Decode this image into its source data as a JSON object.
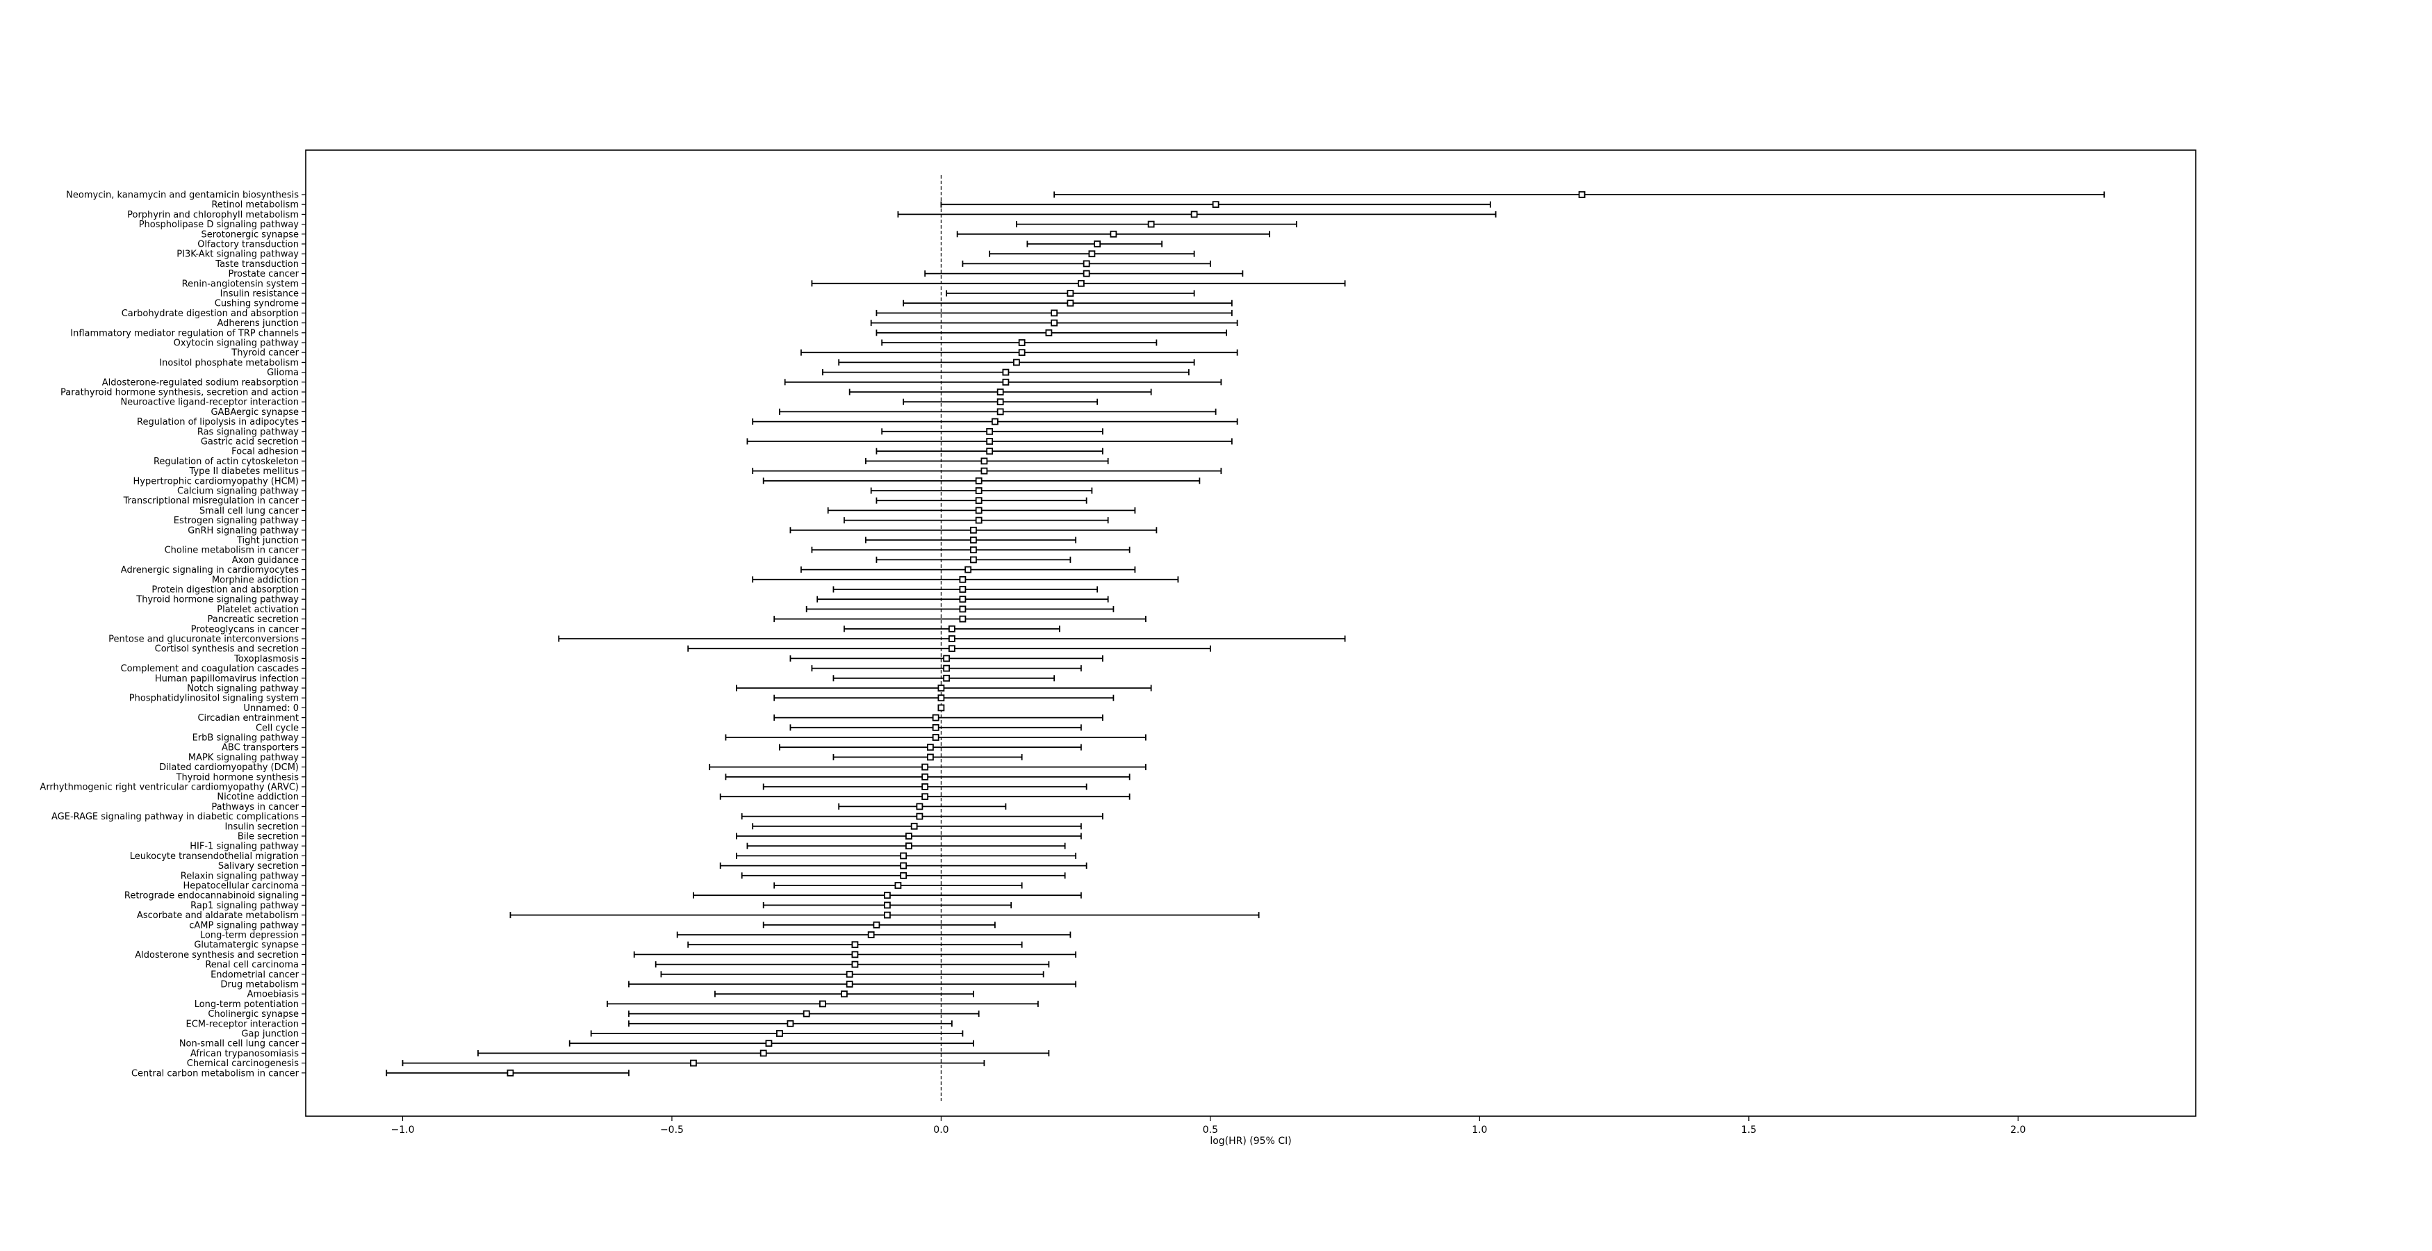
{
  "chart_data": {
    "type": "forest",
    "title": "",
    "xlabel": "log(HR) (95% CI)",
    "ylabel": "",
    "xlim": [
      -1.18,
      2.33
    ],
    "xticks": [
      -1.0,
      -0.5,
      0.0,
      0.5,
      1.0,
      1.5,
      2.0
    ],
    "xtick_labels": [
      "−1.0",
      "−0.5",
      "0.0",
      "0.5",
      "1.0",
      "1.5",
      "2.0"
    ],
    "reference_line": 0,
    "grid": false,
    "legend": "none",
    "colors": {
      "line": "#000000",
      "marker_fill": "#ffffff",
      "marker_edge": "#000000",
      "background": "#ffffff"
    },
    "rows": [
      {
        "label": "Neomycin, kanamycin and gentamicin biosynthesis",
        "est": 1.19,
        "lo": 0.21,
        "hi": 2.16
      },
      {
        "label": "Retinol metabolism",
        "est": 0.51,
        "lo": 0.0,
        "hi": 1.02
      },
      {
        "label": "Porphyrin and chlorophyll metabolism",
        "est": 0.47,
        "lo": -0.08,
        "hi": 1.03
      },
      {
        "label": "Phospholipase D signaling pathway",
        "est": 0.39,
        "lo": 0.14,
        "hi": 0.66
      },
      {
        "label": "Serotonergic synapse",
        "est": 0.32,
        "lo": 0.03,
        "hi": 0.61
      },
      {
        "label": "Olfactory transduction",
        "est": 0.29,
        "lo": 0.16,
        "hi": 0.41
      },
      {
        "label": "PI3K-Akt signaling pathway",
        "est": 0.28,
        "lo": 0.09,
        "hi": 0.47
      },
      {
        "label": "Taste transduction",
        "est": 0.27,
        "lo": 0.04,
        "hi": 0.5
      },
      {
        "label": "Prostate cancer",
        "est": 0.27,
        "lo": -0.03,
        "hi": 0.56
      },
      {
        "label": "Renin-angiotensin system",
        "est": 0.26,
        "lo": -0.24,
        "hi": 0.75
      },
      {
        "label": "Insulin resistance",
        "est": 0.24,
        "lo": 0.01,
        "hi": 0.47
      },
      {
        "label": "Cushing syndrome",
        "est": 0.24,
        "lo": -0.07,
        "hi": 0.54
      },
      {
        "label": "Carbohydrate digestion and absorption",
        "est": 0.21,
        "lo": -0.12,
        "hi": 0.54
      },
      {
        "label": "Adherens junction",
        "est": 0.21,
        "lo": -0.13,
        "hi": 0.55
      },
      {
        "label": "Inflammatory mediator regulation of TRP channels",
        "est": 0.2,
        "lo": -0.12,
        "hi": 0.53
      },
      {
        "label": "Oxytocin signaling pathway",
        "est": 0.15,
        "lo": -0.11,
        "hi": 0.4
      },
      {
        "label": "Thyroid cancer",
        "est": 0.15,
        "lo": -0.26,
        "hi": 0.55
      },
      {
        "label": "Inositol phosphate metabolism",
        "est": 0.14,
        "lo": -0.19,
        "hi": 0.47
      },
      {
        "label": "Glioma",
        "est": 0.12,
        "lo": -0.22,
        "hi": 0.46
      },
      {
        "label": "Aldosterone-regulated sodium reabsorption",
        "est": 0.12,
        "lo": -0.29,
        "hi": 0.52
      },
      {
        "label": "Parathyroid hormone synthesis, secretion and action",
        "est": 0.11,
        "lo": -0.17,
        "hi": 0.39
      },
      {
        "label": "Neuroactive ligand-receptor interaction",
        "est": 0.11,
        "lo": -0.07,
        "hi": 0.29
      },
      {
        "label": "GABAergic synapse",
        "est": 0.11,
        "lo": -0.3,
        "hi": 0.51
      },
      {
        "label": "Regulation of lipolysis in adipocytes",
        "est": 0.1,
        "lo": -0.35,
        "hi": 0.55
      },
      {
        "label": "Ras signaling pathway",
        "est": 0.09,
        "lo": -0.11,
        "hi": 0.3
      },
      {
        "label": "Gastric acid secretion",
        "est": 0.09,
        "lo": -0.36,
        "hi": 0.54
      },
      {
        "label": "Focal adhesion",
        "est": 0.09,
        "lo": -0.12,
        "hi": 0.3
      },
      {
        "label": "Regulation of actin cytoskeleton",
        "est": 0.08,
        "lo": -0.14,
        "hi": 0.31
      },
      {
        "label": "Type II diabetes mellitus",
        "est": 0.08,
        "lo": -0.35,
        "hi": 0.52
      },
      {
        "label": "Hypertrophic cardiomyopathy (HCM)",
        "est": 0.07,
        "lo": -0.33,
        "hi": 0.48
      },
      {
        "label": "Calcium signaling pathway",
        "est": 0.07,
        "lo": -0.13,
        "hi": 0.28
      },
      {
        "label": "Transcriptional misregulation in cancer",
        "est": 0.07,
        "lo": -0.12,
        "hi": 0.27
      },
      {
        "label": "Small cell lung cancer",
        "est": 0.07,
        "lo": -0.21,
        "hi": 0.36
      },
      {
        "label": "Estrogen signaling pathway",
        "est": 0.07,
        "lo": -0.18,
        "hi": 0.31
      },
      {
        "label": "GnRH signaling pathway",
        "est": 0.06,
        "lo": -0.28,
        "hi": 0.4
      },
      {
        "label": "Tight junction",
        "est": 0.06,
        "lo": -0.14,
        "hi": 0.25
      },
      {
        "label": "Choline metabolism in cancer",
        "est": 0.06,
        "lo": -0.24,
        "hi": 0.35
      },
      {
        "label": "Axon guidance",
        "est": 0.06,
        "lo": -0.12,
        "hi": 0.24
      },
      {
        "label": "Adrenergic signaling in cardiomyocytes",
        "est": 0.05,
        "lo": -0.26,
        "hi": 0.36
      },
      {
        "label": "Morphine addiction",
        "est": 0.04,
        "lo": -0.35,
        "hi": 0.44
      },
      {
        "label": "Protein digestion and absorption",
        "est": 0.04,
        "lo": -0.2,
        "hi": 0.29
      },
      {
        "label": "Thyroid hormone signaling pathway",
        "est": 0.04,
        "lo": -0.23,
        "hi": 0.31
      },
      {
        "label": "Platelet activation",
        "est": 0.04,
        "lo": -0.25,
        "hi": 0.32
      },
      {
        "label": "Pancreatic secretion",
        "est": 0.04,
        "lo": -0.31,
        "hi": 0.38
      },
      {
        "label": "Proteoglycans in cancer",
        "est": 0.02,
        "lo": -0.18,
        "hi": 0.22
      },
      {
        "label": "Pentose and glucuronate interconversions",
        "est": 0.02,
        "lo": -0.71,
        "hi": 0.75
      },
      {
        "label": "Cortisol synthesis and secretion",
        "est": 0.02,
        "lo": -0.47,
        "hi": 0.5
      },
      {
        "label": "Toxoplasmosis",
        "est": 0.01,
        "lo": -0.28,
        "hi": 0.3
      },
      {
        "label": "Complement and coagulation cascades",
        "est": 0.01,
        "lo": -0.24,
        "hi": 0.26
      },
      {
        "label": "Human papillomavirus infection",
        "est": 0.01,
        "lo": -0.2,
        "hi": 0.21
      },
      {
        "label": "Notch signaling pathway",
        "est": 0.0,
        "lo": -0.38,
        "hi": 0.39
      },
      {
        "label": "Phosphatidylinositol signaling system",
        "est": 0.0,
        "lo": -0.31,
        "hi": 0.32
      },
      {
        "label": "Unnamed: 0",
        "est": 0.0,
        "lo": 0.0,
        "hi": 0.0
      },
      {
        "label": "Circadian entrainment",
        "est": -0.01,
        "lo": -0.31,
        "hi": 0.3
      },
      {
        "label": "Cell cycle",
        "est": -0.01,
        "lo": -0.28,
        "hi": 0.26
      },
      {
        "label": "ErbB signaling pathway",
        "est": -0.01,
        "lo": -0.4,
        "hi": 0.38
      },
      {
        "label": "ABC transporters",
        "est": -0.02,
        "lo": -0.3,
        "hi": 0.26
      },
      {
        "label": "MAPK signaling pathway",
        "est": -0.02,
        "lo": -0.2,
        "hi": 0.15
      },
      {
        "label": "Dilated cardiomyopathy (DCM)",
        "est": -0.03,
        "lo": -0.43,
        "hi": 0.38
      },
      {
        "label": "Thyroid hormone synthesis",
        "est": -0.03,
        "lo": -0.4,
        "hi": 0.35
      },
      {
        "label": "Arrhythmogenic right ventricular cardiomyopathy (ARVC)",
        "est": -0.03,
        "lo": -0.33,
        "hi": 0.27
      },
      {
        "label": "Nicotine addiction",
        "est": -0.03,
        "lo": -0.41,
        "hi": 0.35
      },
      {
        "label": "Pathways in cancer",
        "est": -0.04,
        "lo": -0.19,
        "hi": 0.12
      },
      {
        "label": "AGE-RAGE signaling pathway in diabetic complications",
        "est": -0.04,
        "lo": -0.37,
        "hi": 0.3
      },
      {
        "label": "Insulin secretion",
        "est": -0.05,
        "lo": -0.35,
        "hi": 0.26
      },
      {
        "label": "Bile secretion",
        "est": -0.06,
        "lo": -0.38,
        "hi": 0.26
      },
      {
        "label": "HIF-1 signaling pathway",
        "est": -0.06,
        "lo": -0.36,
        "hi": 0.23
      },
      {
        "label": "Leukocyte transendothelial migration",
        "est": -0.07,
        "lo": -0.38,
        "hi": 0.25
      },
      {
        "label": "Salivary secretion",
        "est": -0.07,
        "lo": -0.41,
        "hi": 0.27
      },
      {
        "label": "Relaxin signaling pathway",
        "est": -0.07,
        "lo": -0.37,
        "hi": 0.23
      },
      {
        "label": "Hepatocellular carcinoma",
        "est": -0.08,
        "lo": -0.31,
        "hi": 0.15
      },
      {
        "label": "Retrograde endocannabinoid signaling",
        "est": -0.1,
        "lo": -0.46,
        "hi": 0.26
      },
      {
        "label": "Rap1 signaling pathway",
        "est": -0.1,
        "lo": -0.33,
        "hi": 0.13
      },
      {
        "label": "Ascorbate and aldarate metabolism",
        "est": -0.1,
        "lo": -0.8,
        "hi": 0.59
      },
      {
        "label": "cAMP signaling pathway",
        "est": -0.12,
        "lo": -0.33,
        "hi": 0.1
      },
      {
        "label": "Long-term depression",
        "est": -0.13,
        "lo": -0.49,
        "hi": 0.24
      },
      {
        "label": "Glutamatergic synapse",
        "est": -0.16,
        "lo": -0.47,
        "hi": 0.15
      },
      {
        "label": "Aldosterone synthesis and secretion",
        "est": -0.16,
        "lo": -0.57,
        "hi": 0.25
      },
      {
        "label": "Renal cell carcinoma",
        "est": -0.16,
        "lo": -0.53,
        "hi": 0.2
      },
      {
        "label": "Endometrial cancer",
        "est": -0.17,
        "lo": -0.52,
        "hi": 0.19
      },
      {
        "label": "Drug metabolism",
        "est": -0.17,
        "lo": -0.58,
        "hi": 0.25
      },
      {
        "label": "Amoebiasis",
        "est": -0.18,
        "lo": -0.42,
        "hi": 0.06
      },
      {
        "label": "Long-term potentiation",
        "est": -0.22,
        "lo": -0.62,
        "hi": 0.18
      },
      {
        "label": "Cholinergic synapse",
        "est": -0.25,
        "lo": -0.58,
        "hi": 0.07
      },
      {
        "label": "ECM-receptor interaction",
        "est": -0.28,
        "lo": -0.58,
        "hi": 0.02
      },
      {
        "label": "Gap junction",
        "est": -0.3,
        "lo": -0.65,
        "hi": 0.04
      },
      {
        "label": "Non-small cell lung cancer",
        "est": -0.32,
        "lo": -0.69,
        "hi": 0.06
      },
      {
        "label": "African trypanosomiasis",
        "est": -0.33,
        "lo": -0.86,
        "hi": 0.2
      },
      {
        "label": "Chemical carcinogenesis",
        "est": -0.46,
        "lo": -1.0,
        "hi": 0.08
      },
      {
        "label": "Central carbon metabolism in cancer",
        "est": -0.8,
        "lo": -1.03,
        "hi": -0.58
      }
    ]
  }
}
